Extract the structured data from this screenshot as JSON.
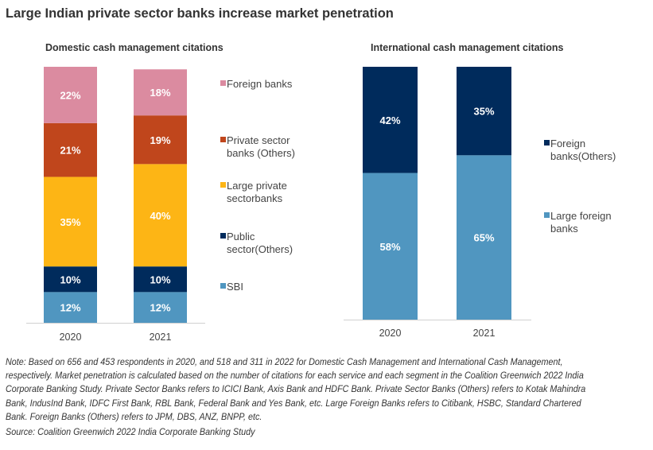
{
  "title": "Large Indian private sector banks increase market penetration",
  "note": "Note: Based on 656 and 453 respondents in 2020, and 518 and 311 in 2022 for Domestic Cash Management and International Cash Management, respectively. Market penetration is calculated based on the number of citations for each service and each segment in the Coalition Greenwich  2022 India Corporate Banking Study. Private Sector Banks refers to ICICI Bank, Axis Bank and HDFC Bank. Private Sector Banks (Others) refers to  Kotak Mahindra Bank, IndusInd Bank, IDFC First Bank, RBL Bank, Federal Bank and Yes Bank, etc. Large Foreign Banks refers to Citibank,  HSBC, Standard Chartered Bank. Foreign Banks (Others) refers to JPM, DBS, ANZ, BNPP, etc.",
  "source": "Source: Coalition Greenwich 2022 India Corporate Banking Study",
  "chart_data": [
    {
      "type": "bar",
      "stacked": true,
      "title": "Domestic cash management citations",
      "categories": [
        "2020",
        "2021"
      ],
      "legend_position": "right",
      "grid": false,
      "series": [
        {
          "name": "SBI",
          "values": [
            12,
            12
          ],
          "color": "#5096C0",
          "labels": [
            "12%",
            "12%"
          ]
        },
        {
          "name": "Public sector(Others)",
          "values": [
            10,
            10
          ],
          "color": "#002B5C",
          "labels": [
            "10%",
            "10%"
          ]
        },
        {
          "name": "Large private sectorbanks",
          "values": [
            35,
            40
          ],
          "color": "#FDB515",
          "labels": [
            "35%",
            "40%"
          ]
        },
        {
          "name": "Private sector banks (Others)",
          "values": [
            21,
            19
          ],
          "color": "#C0461C",
          "labels": [
            "21%",
            "19%"
          ]
        },
        {
          "name": "Foreign banks",
          "values": [
            22,
            18
          ],
          "color": "#DB8BA0",
          "labels": [
            "22%",
            "18%"
          ]
        }
      ],
      "legend_lines": [
        [
          "Foreign banks"
        ],
        [
          "Private sector",
          "banks (Others)"
        ],
        [
          "Large private",
          "sectorbanks"
        ],
        [
          "Public",
          "sector(Others)"
        ],
        [
          "SBI"
        ]
      ]
    },
    {
      "type": "bar",
      "stacked": true,
      "title": "International cash management citations",
      "categories": [
        "2020",
        "2021"
      ],
      "legend_position": "right",
      "grid": false,
      "series": [
        {
          "name": "Large foreign banks",
          "values": [
            58,
            65
          ],
          "color": "#5096C0",
          "labels": [
            "58%",
            "65%"
          ]
        },
        {
          "name": "Foreign banks(Others)",
          "values": [
            42,
            35
          ],
          "color": "#002B5C",
          "labels": [
            "42%",
            "35%"
          ]
        }
      ],
      "legend_lines": [
        [
          "Foreign",
          "banks(Others)"
        ],
        [
          "Large foreign",
          "banks"
        ]
      ]
    }
  ]
}
